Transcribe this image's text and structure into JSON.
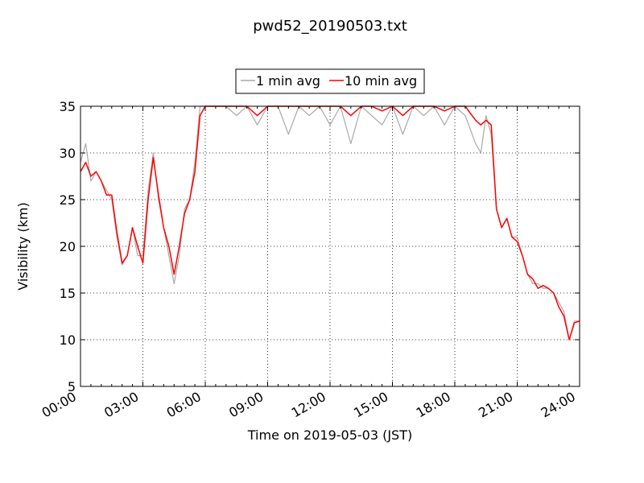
{
  "chart_data": {
    "type": "line",
    "title": "pwd52_20190503.txt",
    "xlabel": "Time on 2019-05-03 (JST)",
    "ylabel": "Visibility (km)",
    "xlim": [
      0,
      24
    ],
    "ylim": [
      5,
      35
    ],
    "xtick_values": [
      0,
      3,
      6,
      9,
      12,
      15,
      18,
      21,
      24
    ],
    "xtick_labels": [
      "00:00",
      "03:00",
      "06:00",
      "09:00",
      "12:00",
      "15:00",
      "18:00",
      "21:00",
      "24:00"
    ],
    "ytick_values": [
      5,
      10,
      15,
      20,
      25,
      30,
      35
    ],
    "ytick_labels": [
      "5",
      "10",
      "15",
      "20",
      "25",
      "30",
      "35"
    ],
    "grid": true,
    "legend_position": "top-center, above plot",
    "series": [
      {
        "name": "1 min avg",
        "color": "#a9a9a9",
        "x": [
          0,
          0.25,
          0.5,
          0.75,
          1,
          1.25,
          1.5,
          1.75,
          2,
          2.25,
          2.5,
          2.75,
          3,
          3.25,
          3.5,
          3.75,
          4,
          4.25,
          4.5,
          4.75,
          5,
          5.25,
          5.5,
          5.75,
          6,
          6.25,
          6.5,
          7,
          7.5,
          8,
          8.5,
          9,
          9.5,
          10,
          10.5,
          11,
          11.5,
          12,
          12.5,
          13,
          13.5,
          14,
          14.5,
          15,
          15.5,
          16,
          16.5,
          17,
          17.5,
          18,
          18.5,
          19,
          19.25,
          19.5,
          19.75,
          20,
          20.25,
          20.5,
          20.75,
          21,
          21.25,
          21.5,
          21.75,
          22,
          22.25,
          22.5,
          22.75,
          23,
          23.25,
          23.5,
          23.75,
          24
        ],
        "y": [
          29,
          31,
          27,
          28,
          27,
          26,
          25,
          21,
          18,
          19,
          22,
          19,
          19,
          26,
          30,
          25,
          22,
          19,
          16,
          19,
          24,
          25,
          29,
          35,
          35,
          35,
          35,
          35,
          34,
          35,
          33,
          35,
          35,
          32,
          35,
          34,
          35,
          33,
          35,
          31,
          35,
          34,
          33,
          35,
          32,
          35,
          34,
          35,
          33,
          35,
          34,
          31,
          30,
          34,
          32,
          24,
          22,
          23,
          21,
          21,
          19,
          17,
          16,
          16,
          15.5,
          15.5,
          15,
          14,
          13,
          10,
          12,
          12
        ]
      },
      {
        "name": "10 min avg",
        "color": "#ff0000",
        "x": [
          0,
          0.25,
          0.5,
          0.75,
          1,
          1.25,
          1.5,
          1.75,
          2,
          2.25,
          2.5,
          2.75,
          3,
          3.25,
          3.5,
          3.75,
          4,
          4.25,
          4.5,
          4.75,
          5,
          5.25,
          5.5,
          5.75,
          6,
          6.25,
          6.5,
          7,
          7.5,
          8,
          8.5,
          9,
          9.5,
          10,
          10.5,
          11,
          11.5,
          12,
          12.5,
          13,
          13.5,
          14,
          14.5,
          15,
          15.5,
          16,
          16.5,
          17,
          17.5,
          18,
          18.5,
          19,
          19.25,
          19.5,
          19.75,
          20,
          20.25,
          20.5,
          20.75,
          21,
          21.25,
          21.5,
          21.75,
          22,
          22.25,
          22.5,
          22.75,
          23,
          23.25,
          23.5,
          23.75,
          24
        ],
        "y": [
          28,
          29,
          27.5,
          28,
          27,
          25.5,
          25.5,
          21.5,
          18.2,
          19,
          22,
          20,
          18.2,
          25,
          29.5,
          25.5,
          22,
          20,
          17,
          20,
          23.5,
          25,
          28,
          34,
          35,
          35,
          35,
          35,
          35,
          35,
          34,
          35,
          35,
          35,
          35,
          35,
          35,
          35,
          35,
          34,
          35,
          35,
          34.5,
          35,
          34,
          35,
          35,
          35,
          34.5,
          35,
          35,
          33.5,
          33,
          33.5,
          33,
          24,
          22,
          23,
          21,
          20.5,
          19,
          17,
          16.5,
          15.5,
          15.8,
          15.5,
          15,
          13.5,
          12.5,
          10,
          11.8,
          12
        ]
      }
    ]
  }
}
